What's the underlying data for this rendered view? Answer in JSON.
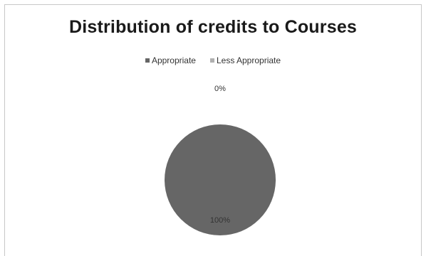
{
  "chart_data": {
    "type": "pie",
    "title": "Distribution of credits to Courses",
    "categories": [
      "Appropriate",
      "Less Appropriate"
    ],
    "values": [
      100,
      0
    ],
    "data_labels": [
      "100%",
      "0%"
    ],
    "colors": [
      "#666666",
      "#b0b0b0"
    ],
    "legend_position": "top"
  }
}
